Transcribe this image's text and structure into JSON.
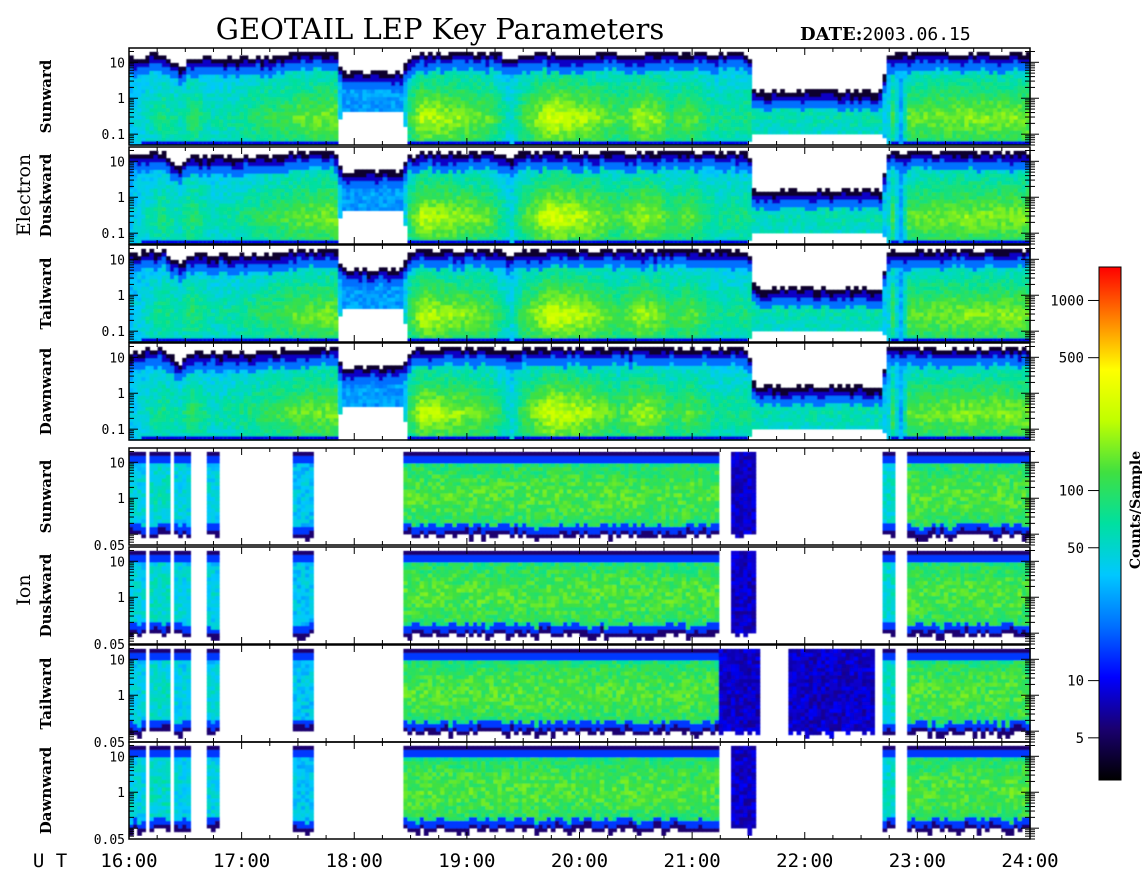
{
  "chart_data": {
    "type": "heatmap",
    "title": "GEOTAIL LEP Key Parameters",
    "date_label": "DATE:",
    "date_value": "2003.06.15",
    "x_axis": {
      "label": "U T",
      "range": [
        "16:00",
        "24:00"
      ],
      "ticks": [
        "16:00",
        "17:00",
        "18:00",
        "19:00",
        "20:00",
        "21:00",
        "22:00",
        "23:00",
        "24:00"
      ]
    },
    "groups": [
      {
        "name": "Electron",
        "ylim": [
          0.05,
          25
        ],
        "yscale": "log",
        "panels": [
          {
            "name": "Sunward",
            "yticks": [
              "10",
              "1",
              "0.1"
            ]
          },
          {
            "name": "Duskward",
            "yticks": [
              "10",
              "1",
              "0.1"
            ]
          },
          {
            "name": "Tailward",
            "yticks": [
              "10",
              "1",
              "0.1"
            ]
          },
          {
            "name": "Dawnward",
            "yticks": [
              "10",
              "1",
              "0.1"
            ]
          }
        ]
      },
      {
        "name": "Ion",
        "ylim": [
          0.05,
          25
        ],
        "yscale": "log",
        "panels": [
          {
            "name": "Sunward",
            "yticks": [
              "10",
              "1",
              "0.05"
            ]
          },
          {
            "name": "Duskward",
            "yticks": [
              "10",
              "1",
              "0.05"
            ]
          },
          {
            "name": "Tailward",
            "yticks": [
              "10",
              "1",
              "0.05"
            ]
          },
          {
            "name": "Dawnward",
            "yticks": [
              "10",
              "1",
              "0.05"
            ]
          }
        ]
      }
    ],
    "colorbar": {
      "label": "Counts/Sample",
      "scale": "log",
      "range": [
        3,
        1500
      ],
      "ticks": [
        {
          "value": 1000,
          "label": "1000"
        },
        {
          "value": 500,
          "label": "500"
        },
        {
          "value": 100,
          "label": "100"
        },
        {
          "value": 50,
          "label": "50"
        },
        {
          "value": 10,
          "label": "10"
        },
        {
          "value": 5,
          "label": "5"
        }
      ],
      "colors": [
        "#000000",
        "#1a0070",
        "#0000ff",
        "#0070ff",
        "#00c8ff",
        "#00e0a0",
        "#40e040",
        "#c0ff00",
        "#ffff00",
        "#ff8000",
        "#ff0000"
      ]
    },
    "electron_profile": {
      "knots": [
        [
          16.0,
          0.1,
          0.0,
          0.9
        ],
        [
          16.3,
          0.35,
          0.0,
          0.95
        ],
        [
          16.45,
          0.25,
          0.0,
          0.8
        ],
        [
          16.55,
          0.4,
          0.0,
          0.9
        ],
        [
          16.75,
          0.25,
          0.0,
          0.9
        ],
        [
          16.95,
          0.3,
          0.0,
          0.9
        ],
        [
          17.2,
          0.4,
          0.0,
          0.9
        ],
        [
          17.5,
          0.5,
          0.0,
          0.95
        ],
        [
          17.85,
          0.55,
          0.0,
          0.95
        ],
        [
          17.88,
          0.0,
          0.34,
          0.75
        ],
        [
          18.45,
          0.0,
          0.34,
          0.75
        ],
        [
          18.46,
          0.35,
          0.0,
          0.9
        ],
        [
          18.6,
          0.65,
          0.0,
          0.95
        ],
        [
          19.0,
          0.55,
          0.0,
          0.95
        ],
        [
          19.2,
          0.5,
          0.0,
          0.95
        ],
        [
          19.4,
          0.2,
          0.0,
          0.9
        ],
        [
          19.5,
          0.45,
          0.0,
          0.95
        ],
        [
          19.75,
          0.7,
          0.0,
          0.95
        ],
        [
          20.1,
          0.6,
          0.0,
          0.95
        ],
        [
          20.35,
          0.45,
          0.0,
          0.95
        ],
        [
          20.55,
          0.6,
          0.0,
          0.95
        ],
        [
          20.7,
          0.55,
          0.0,
          0.95
        ],
        [
          20.8,
          0.4,
          0.0,
          0.95
        ],
        [
          21.0,
          0.5,
          0.0,
          0.95
        ],
        [
          21.2,
          0.3,
          0.0,
          0.95
        ],
        [
          21.5,
          0.35,
          0.0,
          0.95
        ],
        [
          21.55,
          0.25,
          0.12,
          0.55
        ],
        [
          22.7,
          0.25,
          0.12,
          0.55
        ],
        [
          22.72,
          0.0,
          0.0,
          0.95
        ],
        [
          22.78,
          0.45,
          0.0,
          0.95
        ],
        [
          22.85,
          0.0,
          0.0,
          0.95
        ],
        [
          22.92,
          0.5,
          0.0,
          0.95
        ],
        [
          23.4,
          0.55,
          0.0,
          0.95
        ],
        [
          24.0,
          0.55,
          0.0,
          0.95
        ]
      ]
    },
    "ion_profile": {
      "ranges": [
        [
          16.0,
          16.15,
          0.25
        ],
        [
          16.2,
          16.35,
          0.3
        ],
        [
          16.4,
          16.55,
          0.25
        ],
        [
          16.7,
          16.8,
          0.25
        ],
        [
          17.45,
          17.65,
          0.2
        ],
        [
          18.45,
          21.25,
          0.55
        ],
        [
          21.35,
          21.55,
          0.1
        ],
        [
          22.7,
          22.8,
          0.3
        ],
        [
          22.9,
          24.0,
          0.55
        ]
      ],
      "tailward_extra": [
        [
          21.25,
          21.6,
          0.1
        ],
        [
          21.85,
          22.6,
          0.06
        ]
      ]
    }
  }
}
